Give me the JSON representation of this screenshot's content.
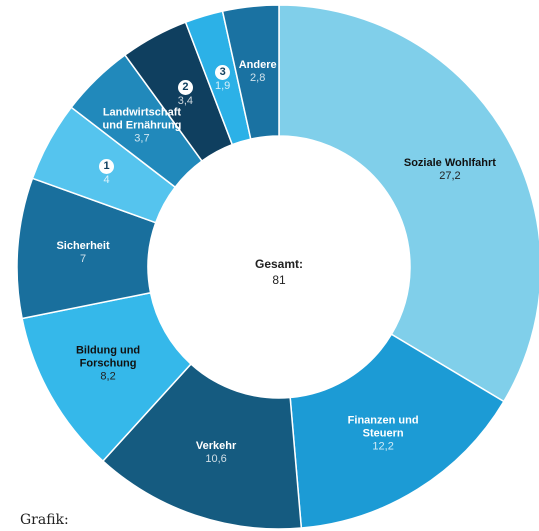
{
  "chart_data": {
    "type": "donut",
    "categories": [
      "Soziale Wohlfahrt",
      "Finanzen und Steuern",
      "Verkehr",
      "Bildung und Forschung",
      "Sicherheit",
      "1",
      "Landwirtschaft und Ernährung",
      "2",
      "3",
      "Andere"
    ],
    "values": [
      27.2,
      12.2,
      10.6,
      8.2,
      7,
      4,
      3.7,
      3.4,
      1.9,
      2.8
    ],
    "value_labels": [
      "27,2",
      "12,2",
      "10,6",
      "8,2",
      "7",
      "4",
      "3,7",
      "3,4",
      "1,9",
      "2,8"
    ],
    "colors": [
      "#80cfea",
      "#1c9bd5",
      "#155b80",
      "#35b8ea",
      "#196f9d",
      "#55c4ee",
      "#2189bb",
      "#0f3f5f",
      "#2cb1e7",
      "#1a72a2"
    ],
    "center_label": "Gesamt:",
    "total": 81
  },
  "footer": "Grafik:"
}
